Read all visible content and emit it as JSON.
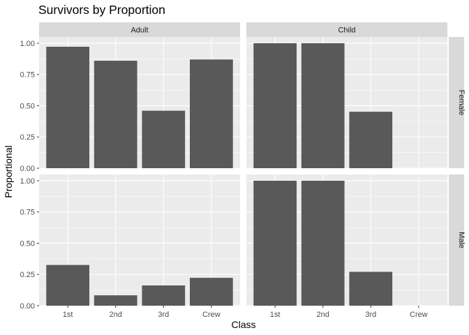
{
  "chart_data": {
    "type": "bar",
    "title": "Survivors by Proportion",
    "xlabel": "Class",
    "ylabel": "Proportional",
    "categories": [
      "1st",
      "2nd",
      "3rd",
      "Crew"
    ],
    "facet_columns": [
      "Adult",
      "Child"
    ],
    "facet_rows": [
      "Female",
      "Male"
    ],
    "ylim": [
      0,
      1.05
    ],
    "yticks": [
      "0.00",
      "0.25",
      "0.50",
      "0.75",
      "1.00"
    ],
    "grid": true,
    "legend": "none",
    "panels": [
      {
        "row": "Female",
        "col": "Adult",
        "values": [
          0.972,
          0.86,
          0.46,
          0.87
        ]
      },
      {
        "row": "Female",
        "col": "Child",
        "values": [
          1.0,
          1.0,
          0.452,
          null
        ]
      },
      {
        "row": "Male",
        "col": "Adult",
        "values": [
          0.326,
          0.083,
          0.162,
          0.223
        ]
      },
      {
        "row": "Male",
        "col": "Child",
        "values": [
          1.0,
          1.0,
          0.271,
          null
        ]
      }
    ],
    "colors": {
      "bar": "#595959",
      "panel_bg": "#ebebeb",
      "grid_major": "#ffffff",
      "strip_bg": "#d9d9d9",
      "tick_text": "#4d4d4d"
    }
  }
}
